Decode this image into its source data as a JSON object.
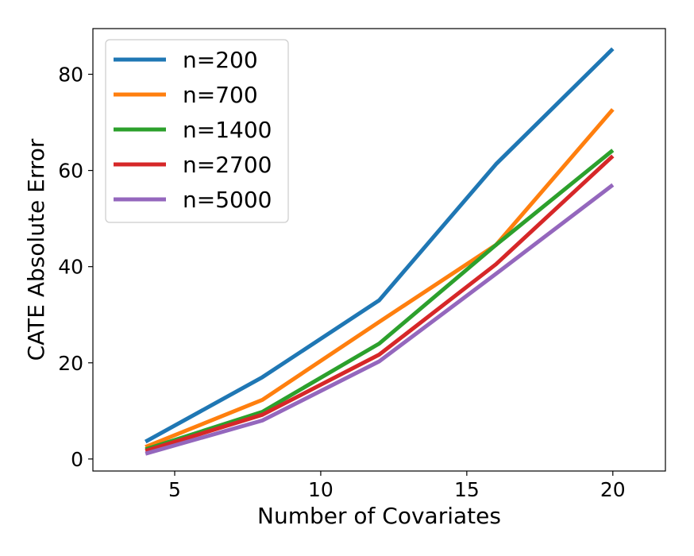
{
  "chart_data": {
    "type": "line",
    "title": "",
    "xlabel": "Number of Covariates",
    "ylabel": "CATE Absolute Error",
    "x": [
      4,
      8,
      12,
      16,
      20
    ],
    "xlim": [
      2.2,
      21.8
    ],
    "ylim": [
      -2.5,
      89.5
    ],
    "xticks": [
      5,
      10,
      15,
      20
    ],
    "yticks": [
      0,
      20,
      40,
      60,
      80
    ],
    "grid": false,
    "legend_position": "top-left",
    "series": [
      {
        "name": "n=200",
        "color": "#1f77b4",
        "values": [
          3.6,
          17.0,
          33.0,
          61.3,
          85.3
        ]
      },
      {
        "name": "n=700",
        "color": "#ff7f0e",
        "values": [
          2.5,
          12.3,
          28.5,
          44.5,
          72.7
        ]
      },
      {
        "name": "n=1400",
        "color": "#2ca02c",
        "values": [
          2.0,
          9.8,
          24.0,
          44.5,
          64.2
        ]
      },
      {
        "name": "n=2700",
        "color": "#d62728",
        "values": [
          1.7,
          9.2,
          21.7,
          40.5,
          63.0
        ]
      },
      {
        "name": "n=5000",
        "color": "#9467bd",
        "values": [
          1.1,
          8.0,
          20.3,
          38.5,
          57.0
        ]
      }
    ]
  }
}
